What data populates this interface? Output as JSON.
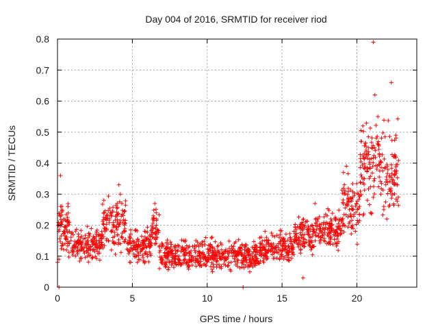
{
  "chart_data": {
    "type": "scatter",
    "title": "Day 004 of 2016, SRMTID for receiver riod",
    "xlabel": "GPS time / hours",
    "ylabel": "SRMTID / TECUs",
    "xlim": [
      0,
      24
    ],
    "ylim": [
      0,
      0.8
    ],
    "xticks": [
      0,
      5,
      10,
      15,
      20
    ],
    "yticks": [
      0,
      0.1,
      0.2,
      0.3,
      0.4,
      0.5,
      0.6,
      0.7,
      0.8
    ],
    "xtick_labels": [
      "0",
      "5",
      "10",
      "15",
      "20"
    ],
    "ytick_labels": [
      "0",
      "0.1",
      "0.2",
      "0.3",
      "0.4",
      "0.5",
      "0.6",
      "0.7",
      "0.8"
    ],
    "grid": true,
    "marker": "+",
    "color": "#ff0000",
    "series": [
      {
        "name": "SRMTID",
        "x": [
          0.0,
          0.1,
          0.2,
          0.3,
          0.4,
          0.5,
          0.6,
          0.7,
          0.8,
          0.9,
          1.0,
          1.2,
          1.4,
          1.6,
          1.8,
          2.0,
          2.2,
          2.4,
          2.6,
          2.8,
          3.0,
          3.1,
          3.2,
          3.4,
          3.6,
          3.8,
          4.0,
          4.1,
          4.2,
          4.3,
          4.5,
          4.7,
          5.0,
          5.3,
          5.6,
          5.9,
          6.2,
          6.4,
          6.5,
          6.6,
          6.8,
          7.0,
          7.3,
          7.6,
          8.0,
          8.4,
          8.8,
          9.2,
          9.5,
          9.8,
          10.1,
          10.4,
          10.8,
          11.2,
          11.6,
          12.0,
          12.4,
          12.8,
          13.2,
          13.6,
          14.0,
          14.3,
          14.6,
          15.0,
          15.3,
          15.6,
          15.8,
          16.0,
          16.1,
          16.3,
          16.5,
          16.8,
          17.0,
          17.2,
          17.4,
          17.6,
          17.8,
          18.0,
          18.3,
          18.6,
          18.9,
          19.1,
          19.3,
          19.5,
          19.7,
          19.9,
          20.1,
          20.3,
          20.4,
          20.5,
          20.7,
          20.9,
          21.0,
          21.1,
          21.2,
          21.3,
          21.4,
          21.5,
          21.6,
          21.8,
          22.0,
          22.2,
          22.3,
          22.5,
          22.6,
          22.7
        ],
        "y": [
          0.08,
          0.2,
          0.36,
          0.25,
          0.18,
          0.14,
          0.12,
          0.26,
          0.18,
          0.15,
          0.12,
          0.1,
          0.14,
          0.13,
          0.11,
          0.1,
          0.12,
          0.14,
          0.13,
          0.11,
          0.17,
          0.28,
          0.22,
          0.15,
          0.12,
          0.14,
          0.21,
          0.33,
          0.3,
          0.27,
          0.18,
          0.14,
          0.12,
          0.1,
          0.12,
          0.11,
          0.13,
          0.23,
          0.27,
          0.2,
          0.13,
          0.09,
          0.08,
          0.11,
          0.1,
          0.12,
          0.11,
          0.08,
          0.07,
          0.1,
          0.09,
          0.11,
          0.1,
          0.09,
          0.08,
          0.11,
          0.1,
          0.12,
          0.13,
          0.11,
          0.15,
          0.14,
          0.12,
          0.1,
          0.11,
          0.14,
          0.18,
          0.15,
          0.13,
          0.16,
          0.17,
          0.19,
          0.2,
          0.27,
          0.22,
          0.18,
          0.15,
          0.14,
          0.19,
          0.22,
          0.17,
          0.37,
          0.39,
          0.25,
          0.2,
          0.18,
          0.3,
          0.47,
          0.52,
          0.35,
          0.28,
          0.24,
          0.45,
          0.79,
          0.62,
          0.48,
          0.55,
          0.43,
          0.3,
          0.25,
          0.22,
          0.36,
          0.66,
          0.42,
          0.49,
          0.33
        ],
        "scatter_cloud": [
          {
            "from": 0.0,
            "to": 1.0,
            "low": 0.06,
            "high": 0.3
          },
          {
            "from": 1.0,
            "to": 3.0,
            "low": 0.07,
            "high": 0.21
          },
          {
            "from": 3.0,
            "to": 4.6,
            "low": 0.09,
            "high": 0.32
          },
          {
            "from": 4.6,
            "to": 6.3,
            "low": 0.06,
            "high": 0.21
          },
          {
            "from": 6.3,
            "to": 6.8,
            "low": 0.1,
            "high": 0.27
          },
          {
            "from": 6.8,
            "to": 13.5,
            "low": 0.03,
            "high": 0.17
          },
          {
            "from": 13.5,
            "to": 15.8,
            "low": 0.06,
            "high": 0.2
          },
          {
            "from": 15.8,
            "to": 17.2,
            "low": 0.08,
            "high": 0.25
          },
          {
            "from": 17.2,
            "to": 19.0,
            "low": 0.1,
            "high": 0.27
          },
          {
            "from": 19.0,
            "to": 20.2,
            "low": 0.12,
            "high": 0.4
          },
          {
            "from": 20.2,
            "to": 22.8,
            "low": 0.18,
            "high": 0.58
          }
        ],
        "outliers": [
          {
            "x": 0.1,
            "y": 0.0
          },
          {
            "x": 12.4,
            "y": 0.0
          },
          {
            "x": 16.4,
            "y": 0.03
          }
        ]
      }
    ]
  }
}
